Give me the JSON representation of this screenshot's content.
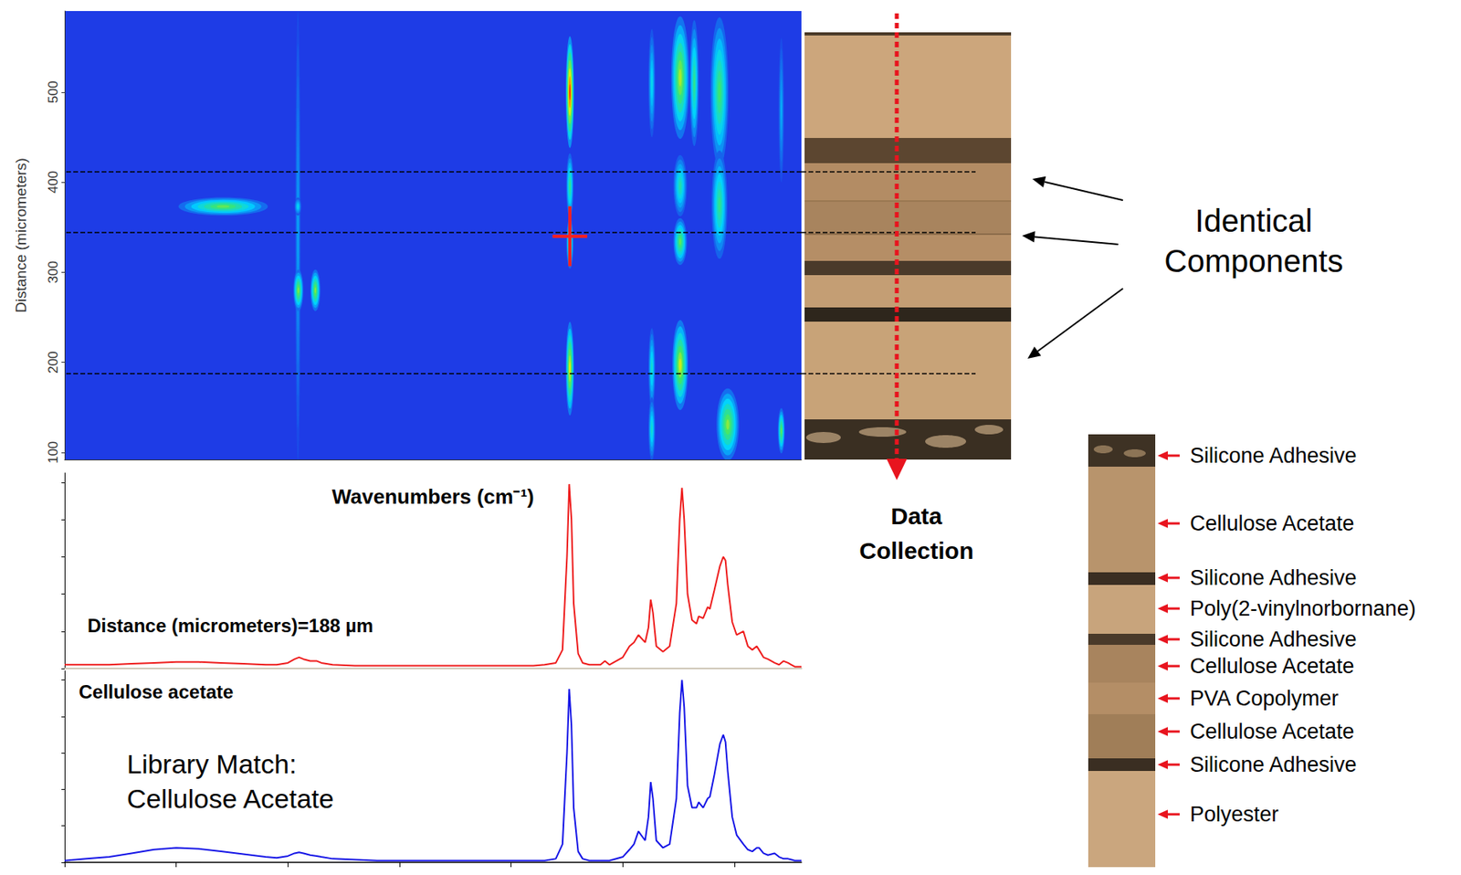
{
  "chart_data": [
    {
      "type": "heatmap",
      "x_label": "Wavenumbers (cm⁻¹)",
      "y_label": "Distance (micrometers)",
      "xlim": [
        4000,
        700
      ],
      "ylim": [
        92,
        590
      ],
      "yticks": [
        100,
        200,
        300,
        400,
        500
      ],
      "tick_labels": "y",
      "grid": false,
      "colors": [
        "#1e3ce6",
        "#00d2ff",
        "#3ce66e",
        "#f5f000",
        "#ff1e00"
      ],
      "value_range": [
        0,
        1
      ],
      "blobs": [
        {
          "wavenumber": 2955,
          "distance": 340,
          "half_width": 12,
          "half_height": 250,
          "intensity": 0.18
        },
        {
          "wavenumber": 790,
          "distance": 480,
          "half_width": 12,
          "half_height": 80,
          "intensity": 0.2
        },
        {
          "wavenumber": 1370,
          "distance": 510,
          "half_width": 15,
          "half_height": 60,
          "intensity": 0.3
        },
        {
          "wavenumber": 1370,
          "distance": 193,
          "half_width": 15,
          "half_height": 45,
          "intensity": 0.35
        },
        {
          "wavenumber": 1370,
          "distance": 126,
          "half_width": 15,
          "half_height": 35,
          "intensity": 0.35
        },
        {
          "wavenumber": 1180,
          "distance": 510,
          "half_width": 20,
          "half_height": 70,
          "intensity": 0.45
        },
        {
          "wavenumber": 3290,
          "distance": 373,
          "half_width": 200,
          "half_height": 10,
          "intensity": 0.55
        },
        {
          "wavenumber": 2955,
          "distance": 373,
          "half_width": 15,
          "half_height": 10,
          "intensity": 0.3
        },
        {
          "wavenumber": 2953,
          "distance": 280,
          "half_width": 22,
          "half_height": 23,
          "intensity": 0.6
        },
        {
          "wavenumber": 2877,
          "distance": 280,
          "half_width": 22,
          "half_height": 23,
          "intensity": 0.6
        },
        {
          "wavenumber": 1067,
          "distance": 500,
          "half_width": 40,
          "half_height": 83,
          "intensity": 0.5
        },
        {
          "wavenumber": 1067,
          "distance": 375,
          "half_width": 35,
          "half_height": 60,
          "intensity": 0.45
        },
        {
          "wavenumber": 1030,
          "distance": 131,
          "half_width": 50,
          "half_height": 40,
          "intensity": 0.6
        },
        {
          "wavenumber": 1243,
          "distance": 516,
          "half_width": 40,
          "half_height": 68,
          "intensity": 0.65
        },
        {
          "wavenumber": 1243,
          "distance": 396,
          "half_width": 30,
          "half_height": 34,
          "intensity": 0.4
        },
        {
          "wavenumber": 1243,
          "distance": 334,
          "half_width": 30,
          "half_height": 26,
          "intensity": 0.55
        },
        {
          "wavenumber": 1243,
          "distance": 197,
          "half_width": 35,
          "half_height": 50,
          "intensity": 0.7
        },
        {
          "wavenumber": 790,
          "distance": 124,
          "half_width": 15,
          "half_height": 25,
          "intensity": 0.55
        },
        {
          "wavenumber": 1737,
          "distance": 500,
          "half_width": 18,
          "half_height": 62,
          "intensity": 1.0
        },
        {
          "wavenumber": 1737,
          "distance": 396,
          "half_width": 16,
          "half_height": 36,
          "intensity": 0.45
        },
        {
          "wavenumber": 1737,
          "distance": 332,
          "half_width": 16,
          "half_height": 28,
          "intensity": 0.5
        },
        {
          "wavenumber": 1737,
          "distance": 193,
          "half_width": 18,
          "half_height": 52,
          "intensity": 0.75
        }
      ],
      "cursor": [
        1737,
        340
      ],
      "marked_distances": [
        412,
        344,
        188
      ]
    },
    {
      "type": "line",
      "title": "Distance (micrometers)=188 µm",
      "color": "#ee1c1c",
      "xlim": [
        4000,
        700
      ],
      "ylim": [
        0,
        1.05
      ],
      "yticks": [
        0,
        0.2,
        0.4,
        0.6,
        0.8,
        1
      ],
      "tick_labels": false,
      "grid": false,
      "x": [
        4000,
        3900,
        3800,
        3700,
        3600,
        3500,
        3400,
        3300,
        3200,
        3100,
        3050,
        3000,
        2970,
        2950,
        2930,
        2900,
        2870,
        2850,
        2800,
        2700,
        2600,
        2500,
        2400,
        2300,
        2200,
        2100,
        2000,
        1900,
        1850,
        1800,
        1770,
        1750,
        1740,
        1730,
        1720,
        1700,
        1680,
        1650,
        1600,
        1580,
        1560,
        1500,
        1470,
        1450,
        1430,
        1400,
        1385,
        1375,
        1365,
        1350,
        1320,
        1290,
        1260,
        1245,
        1235,
        1225,
        1210,
        1190,
        1170,
        1160,
        1140,
        1120,
        1110,
        1090,
        1065,
        1050,
        1040,
        1030,
        1010,
        990,
        960,
        940,
        920,
        900,
        890,
        870,
        850,
        820,
        800,
        780,
        760,
        745,
        730,
        700
      ],
      "values": [
        0.02,
        0.02,
        0.02,
        0.025,
        0.03,
        0.035,
        0.035,
        0.03,
        0.025,
        0.02,
        0.02,
        0.03,
        0.05,
        0.06,
        0.05,
        0.04,
        0.04,
        0.03,
        0.02,
        0.015,
        0.015,
        0.015,
        0.015,
        0.015,
        0.015,
        0.015,
        0.015,
        0.015,
        0.02,
        0.03,
        0.1,
        0.6,
        0.99,
        0.8,
        0.35,
        0.08,
        0.03,
        0.02,
        0.02,
        0.04,
        0.02,
        0.06,
        0.12,
        0.14,
        0.18,
        0.14,
        0.22,
        0.37,
        0.3,
        0.12,
        0.09,
        0.12,
        0.35,
        0.8,
        0.97,
        0.8,
        0.4,
        0.26,
        0.24,
        0.28,
        0.27,
        0.33,
        0.32,
        0.42,
        0.55,
        0.6,
        0.58,
        0.45,
        0.25,
        0.18,
        0.2,
        0.12,
        0.1,
        0.12,
        0.1,
        0.06,
        0.05,
        0.03,
        0.02,
        0.04,
        0.03,
        0.02,
        0.01,
        0.01
      ]
    },
    {
      "type": "line",
      "title": "Cellulose acetate",
      "annotations": [
        "Library Match:",
        "Cellulose Acetate"
      ],
      "color": "#1414e6",
      "xlim": [
        4000,
        700
      ],
      "xticks": [
        4000,
        3500,
        3000,
        2500,
        2000,
        1500,
        1000
      ],
      "ylim": [
        0,
        1.05
      ],
      "yticks": [
        0,
        0.2,
        0.4,
        0.6,
        0.8,
        1
      ],
      "tick_labels": false,
      "grid": false,
      "x": [
        4000,
        3900,
        3800,
        3700,
        3600,
        3500,
        3400,
        3300,
        3200,
        3100,
        3050,
        3000,
        2970,
        2950,
        2930,
        2900,
        2870,
        2850,
        2800,
        2700,
        2600,
        2500,
        2400,
        2300,
        2200,
        2100,
        2000,
        1900,
        1850,
        1800,
        1770,
        1750,
        1740,
        1730,
        1720,
        1700,
        1680,
        1650,
        1600,
        1580,
        1560,
        1500,
        1470,
        1450,
        1430,
        1400,
        1385,
        1375,
        1365,
        1350,
        1320,
        1290,
        1260,
        1245,
        1235,
        1225,
        1210,
        1190,
        1170,
        1160,
        1140,
        1120,
        1110,
        1090,
        1065,
        1050,
        1040,
        1030,
        1010,
        990,
        960,
        940,
        920,
        900,
        890,
        870,
        850,
        820,
        800,
        780,
        760,
        745,
        730,
        700
      ],
      "values": [
        0.01,
        0.02,
        0.03,
        0.05,
        0.07,
        0.08,
        0.075,
        0.06,
        0.045,
        0.03,
        0.025,
        0.035,
        0.05,
        0.055,
        0.05,
        0.04,
        0.035,
        0.03,
        0.02,
        0.015,
        0.01,
        0.01,
        0.01,
        0.01,
        0.01,
        0.01,
        0.01,
        0.01,
        0.01,
        0.02,
        0.1,
        0.6,
        0.95,
        0.75,
        0.3,
        0.06,
        0.02,
        0.01,
        0.01,
        0.01,
        0.01,
        0.03,
        0.07,
        0.1,
        0.17,
        0.12,
        0.25,
        0.44,
        0.35,
        0.12,
        0.08,
        0.1,
        0.35,
        0.82,
        1.0,
        0.85,
        0.42,
        0.3,
        0.3,
        0.33,
        0.3,
        0.35,
        0.36,
        0.48,
        0.65,
        0.7,
        0.66,
        0.5,
        0.25,
        0.15,
        0.1,
        0.07,
        0.06,
        0.08,
        0.08,
        0.05,
        0.04,
        0.05,
        0.03,
        0.02,
        0.02,
        0.015,
        0.01,
        0.01
      ]
    }
  ],
  "figure": {
    "identical_components": "Identical Components",
    "data_collection": "Data Collection",
    "layers": [
      "Silicone Adhesive",
      "Cellulose Acetate",
      "Silicone Adhesive",
      "Poly(2-vinylnorbornane)",
      "Silicone Adhesive",
      "Cellulose Acetate",
      "PVA Copolymer",
      "Cellulose Acetate",
      "Silicone Adhesive",
      "Polyester"
    ]
  }
}
